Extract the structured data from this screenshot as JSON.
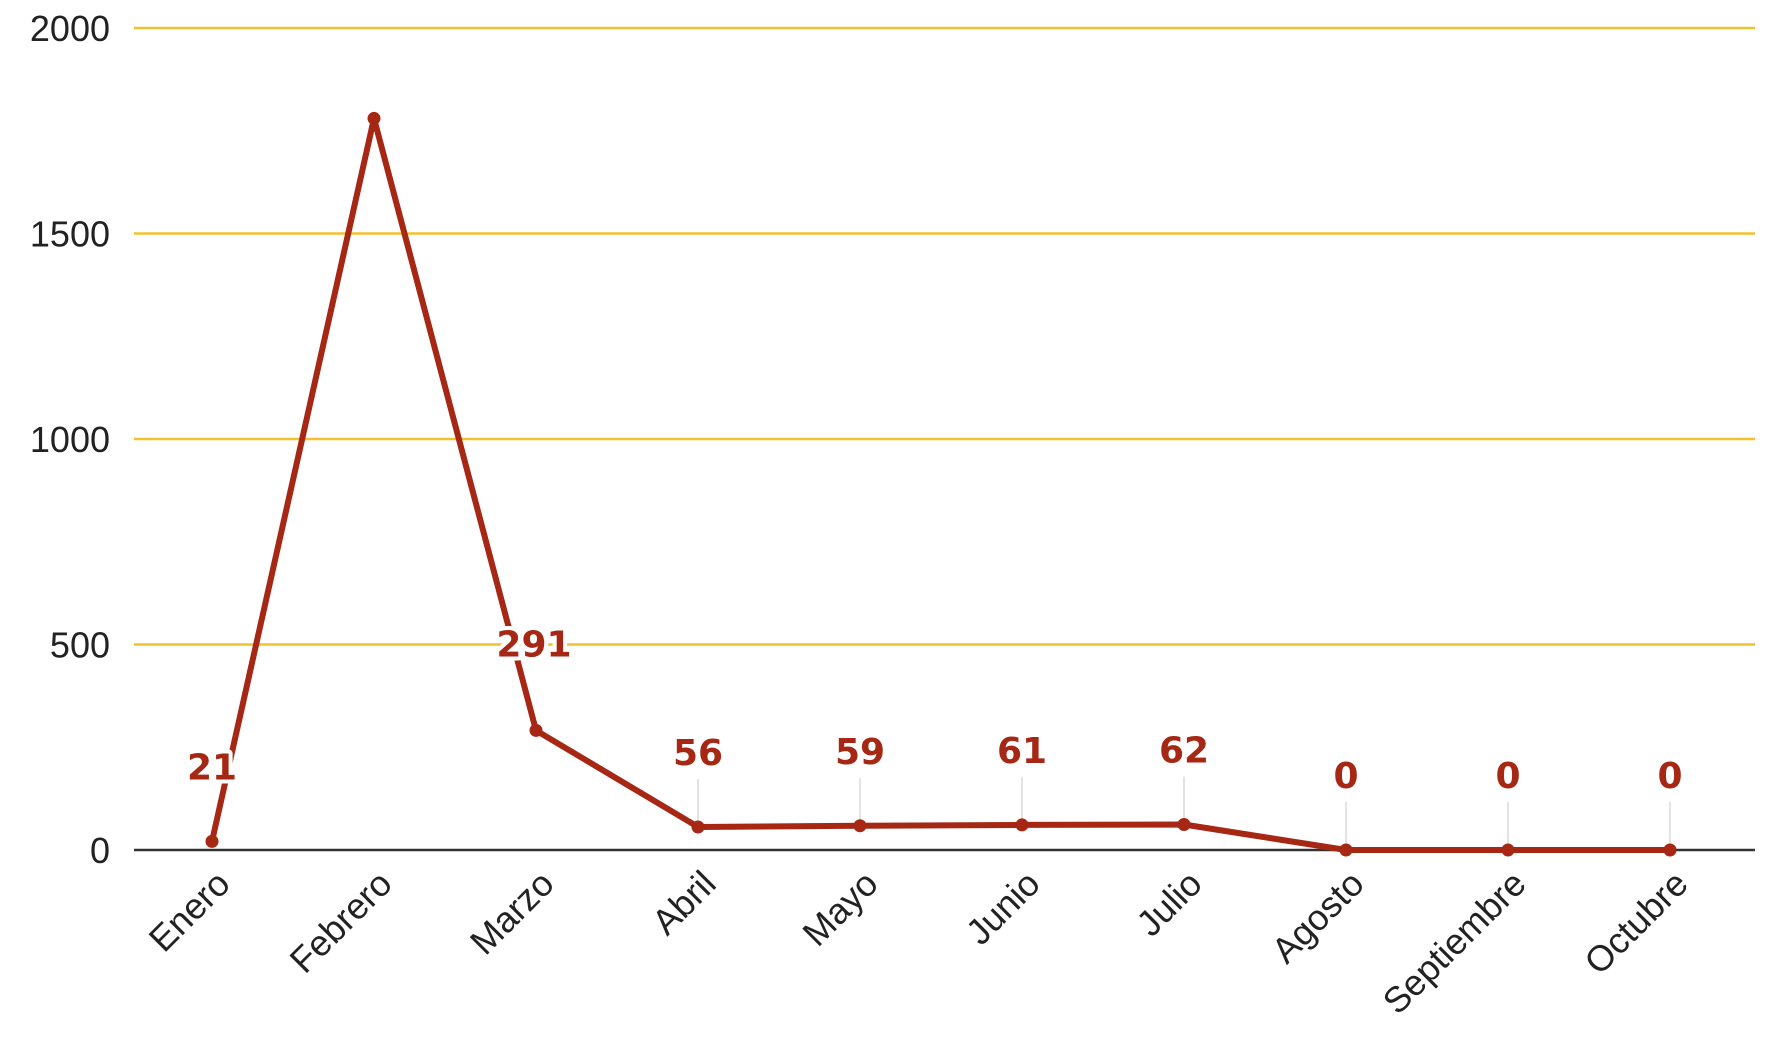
{
  "colors": {
    "series": "#a52714",
    "gridline": "#f2c12e",
    "axis": "#333333",
    "leader": "#e3e3e3"
  },
  "chart_data": {
    "type": "line",
    "title": "",
    "xlabel": "",
    "ylabel": "",
    "ylim": [
      0,
      2000
    ],
    "yticks": [
      0,
      500,
      1000,
      1500,
      2000
    ],
    "grid": true,
    "legend": "none",
    "categories": [
      "Enero",
      "Febrero",
      "Marzo",
      "Abril",
      "Mayo",
      "Junio",
      "Julio",
      "Agosto",
      "Septiembre",
      "Octubre"
    ],
    "values": [
      21,
      1780,
      291,
      56,
      59,
      61,
      62,
      0,
      0,
      0
    ],
    "data_labels": [
      "21",
      "",
      "291",
      "56",
      "59",
      "61",
      "62",
      "0",
      "0",
      "0"
    ]
  }
}
